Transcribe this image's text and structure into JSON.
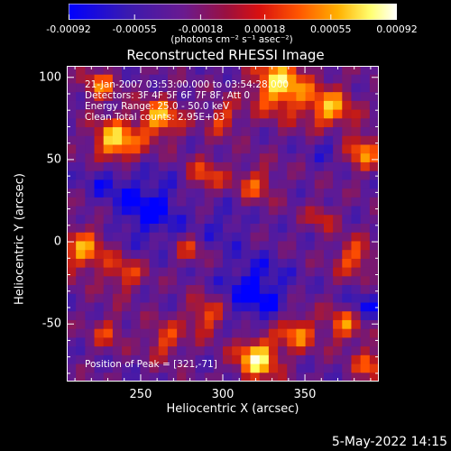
{
  "chart_data": {
    "type": "heatmap",
    "title": "Reconstructed RHESSI Image",
    "xlabel": "Heliocentric X (arcsec)",
    "ylabel": "Heliocentric Y (arcsec)",
    "xlim": [
      205,
      395
    ],
    "ylim": [
      -85,
      107
    ],
    "xticks": [
      {
        "value": 250,
        "label": "250"
      },
      {
        "value": 300,
        "label": "300"
      },
      {
        "value": 350,
        "label": "350"
      }
    ],
    "yticks": [
      {
        "value": 100,
        "label": "100"
      },
      {
        "value": 50,
        "label": "50"
      },
      {
        "value": 0,
        "label": "0"
      },
      {
        "value": -50,
        "label": "-50"
      }
    ],
    "colorbar": {
      "range": [
        -0.00092,
        0.00092
      ],
      "ticks": [
        {
          "value": -0.00092,
          "label": "-0.00092"
        },
        {
          "value": -0.00055,
          "label": "-0.00055"
        },
        {
          "value": -0.00018,
          "label": "-0.00018"
        },
        {
          "value": 0.00018,
          "label": "0.00018"
        },
        {
          "value": 0.00055,
          "label": "0.00055"
        },
        {
          "value": 0.00092,
          "label": "0.00092"
        }
      ],
      "units": "(photons cm⁻² s⁻¹ asec⁻²)"
    },
    "annotations": [
      "21-Jan-2007 03:53:00.000 to 03:54:28.000",
      "Detectors: 3F 4F 5F 6F 7F 8F, Att 0",
      "Energy Range: 25.0 - 50.0 keV",
      "Clean     Total counts: 2.95E+03"
    ],
    "peak_label": "Position of Peak = [321,-71]",
    "peak_position": [
      321,
      -71
    ],
    "colormap": [
      "#0000ff",
      "#3a1ab0",
      "#5a1a9a",
      "#7a1870",
      "#c01818",
      "#ff5000",
      "#ffb000",
      "#ffff60",
      "#ffffff"
    ]
  },
  "footer": {
    "date": "5-May-2022 14:15"
  }
}
